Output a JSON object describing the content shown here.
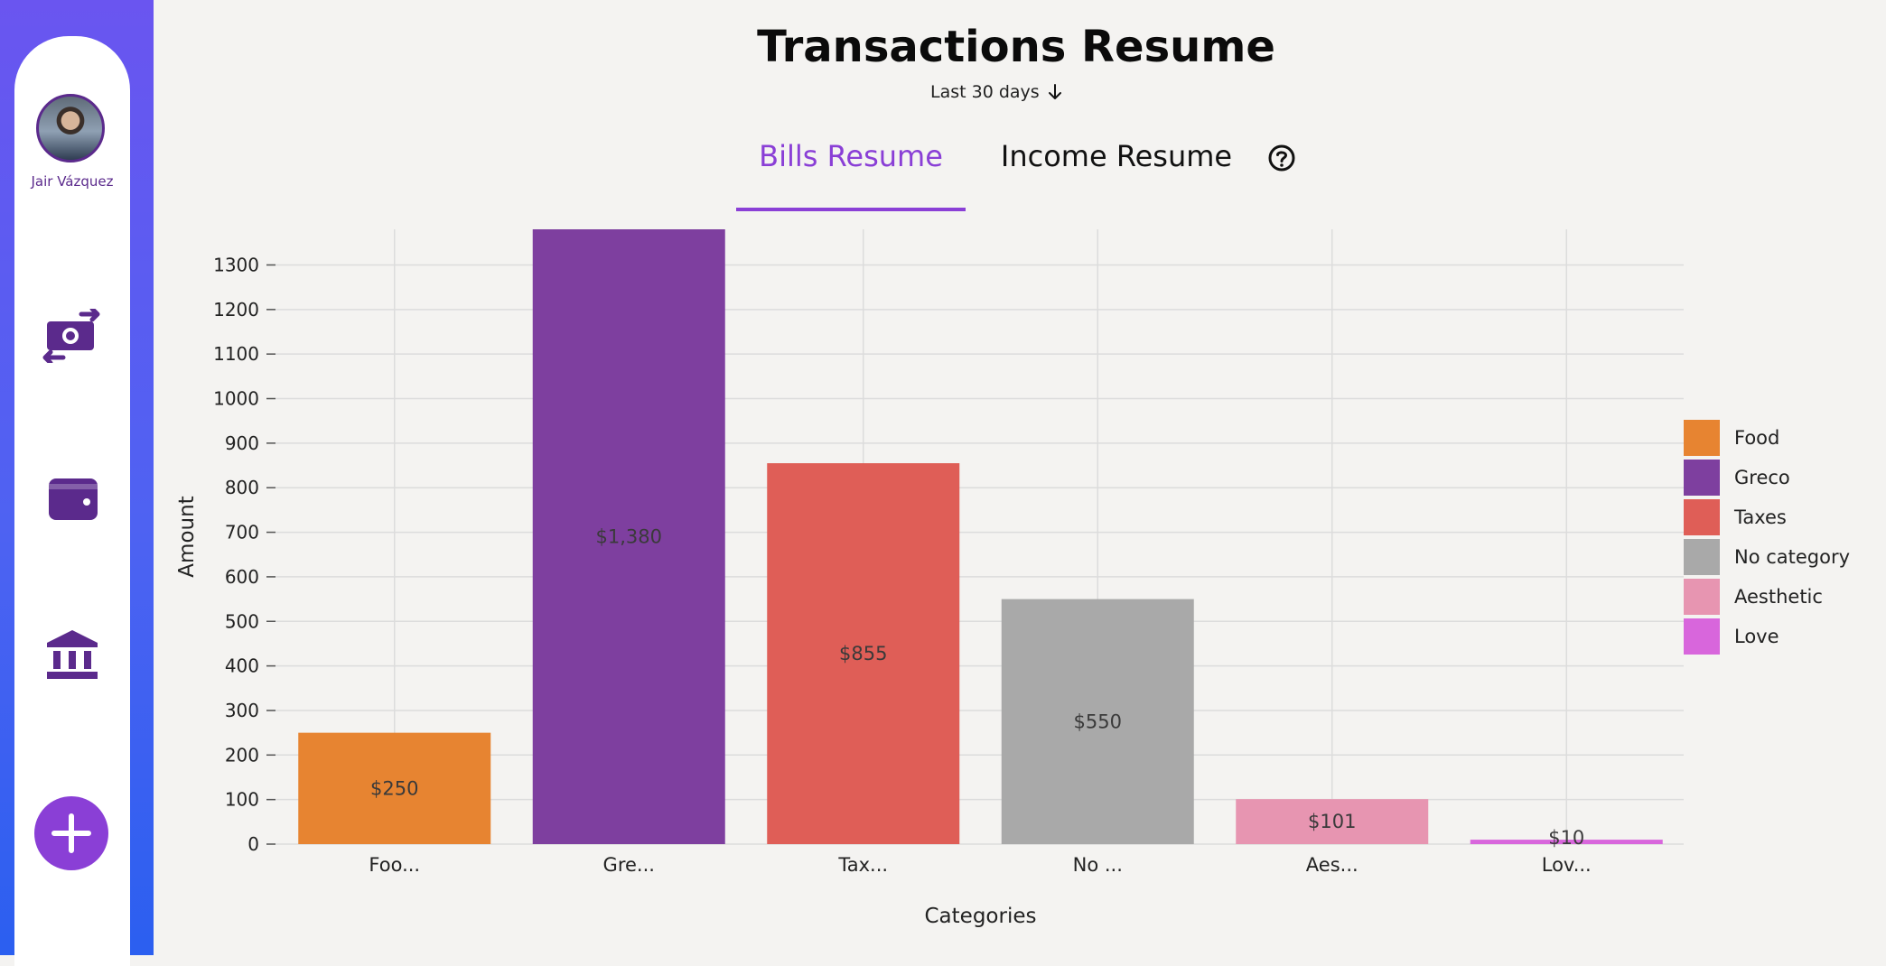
{
  "user": {
    "name": "Jair Vázquez"
  },
  "nav": [
    {
      "icon": "money-transfer-icon"
    },
    {
      "icon": "wallet-icon"
    },
    {
      "icon": "bank-icon"
    }
  ],
  "add_button": {
    "icon": "plus-icon"
  },
  "header": {
    "title": "Transactions Resume",
    "period": "Last 30 days"
  },
  "tabs": [
    {
      "label": "Bills Resume",
      "active": true
    },
    {
      "label": "Income Resume",
      "active": false
    }
  ],
  "help_icon": "question-circle-icon",
  "colors": {
    "accent": "#8a3fd6",
    "sidebar_gradient_top": "#6a55f0",
    "sidebar_gradient_bottom": "#2b5ff0",
    "icon": "#5b2a8c"
  },
  "chart_data": {
    "type": "bar",
    "categories": [
      "Foo...",
      "Gre...",
      "Tax...",
      "No ...",
      "Aes...",
      "Lov..."
    ],
    "values": [
      250,
      1380,
      855,
      550,
      101,
      10
    ],
    "value_labels": [
      "$250",
      "$1,380",
      "$855",
      "$550",
      "$101",
      "$10"
    ],
    "colors": [
      "#e78431",
      "#7e3f9f",
      "#df5e57",
      "#a9a9a9",
      "#e795b1",
      "#d866dc"
    ],
    "legend": [
      "Food",
      "Greco",
      "Taxes",
      "No category",
      "Aesthetic",
      "Love"
    ],
    "legend_position": "right",
    "xlabel": "Categories",
    "ylabel": "Amount",
    "ylim": [
      0,
      1380
    ],
    "yticks": [
      0,
      100,
      200,
      300,
      400,
      500,
      600,
      700,
      800,
      900,
      1000,
      1100,
      1200,
      1300
    ],
    "grid": true
  }
}
